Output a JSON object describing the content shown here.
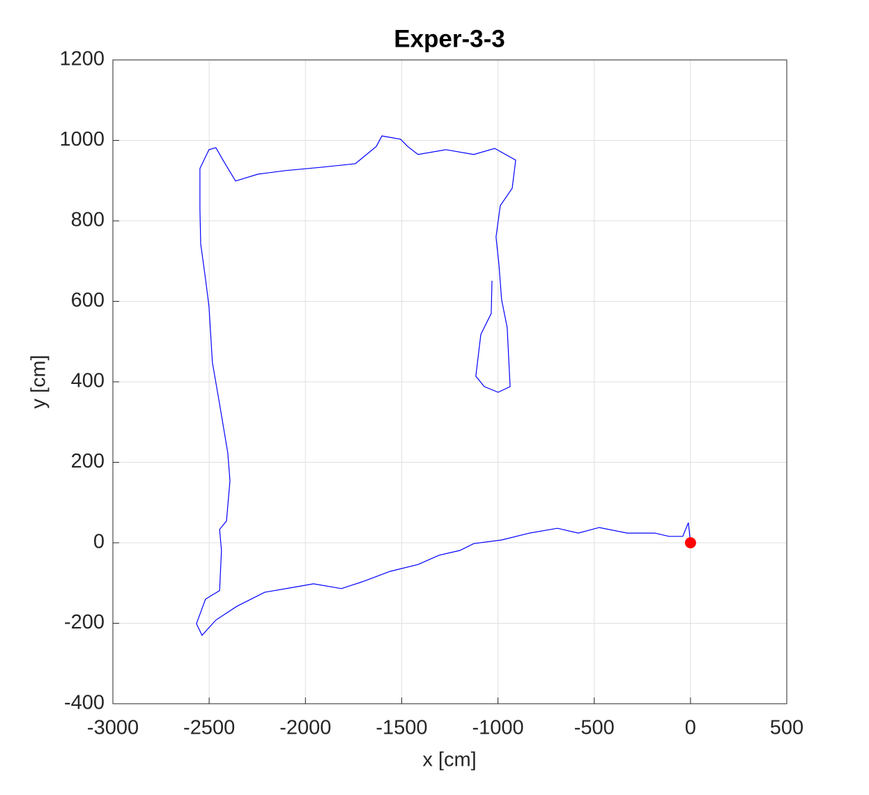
{
  "chart_data": {
    "type": "line",
    "title": "Exper-3-3",
    "x_label": "x [cm]",
    "y_label": "y [cm]",
    "x": [
      0,
      -11,
      -40,
      -112,
      -185,
      -329,
      -474,
      -583,
      -691,
      -836,
      -981,
      -1126,
      -1198,
      -1306,
      -1415,
      -1560,
      -1705,
      -1813,
      -1958,
      -2066,
      -2211,
      -2356,
      -2465,
      -2537,
      -2566,
      -2519,
      -2446,
      -2436,
      -2446,
      -2410,
      -2392,
      -2403,
      -2446,
      -2483,
      -2501,
      -2519,
      -2544,
      -2548,
      -2548,
      -2501,
      -2465,
      -2428,
      -2363,
      -2247,
      -2103,
      -1922,
      -1741,
      -1632,
      -1603,
      -1506,
      -1469,
      -1415,
      -1270,
      -1126,
      -1017,
      -908,
      -926,
      -988,
      -1010,
      -995,
      -981,
      -952,
      -937,
      -999,
      -1071,
      -1115,
      -1089,
      -1035,
      -1031
    ],
    "values": [
      0,
      50,
      16,
      16,
      24,
      24,
      38,
      24,
      36,
      24,
      7,
      -2,
      -19,
      -31,
      -54,
      -71,
      -97,
      -114,
      -102,
      -111,
      -123,
      -158,
      -192,
      -230,
      -201,
      -140,
      -119,
      -19,
      33,
      54,
      154,
      223,
      345,
      448,
      587,
      656,
      743,
      829,
      930,
      977,
      982,
      951,
      899,
      916,
      925,
      933,
      942,
      985,
      1011,
      1003,
      985,
      965,
      977,
      965,
      980,
      951,
      881,
      838,
      760,
      691,
      604,
      535,
      388,
      374,
      388,
      414,
      518,
      570,
      651
    ],
    "color": "#0000ff",
    "marker": {
      "x": 0,
      "y": 0,
      "color": "#ff0000"
    },
    "xlim": [
      -3000,
      500
    ],
    "xticks": [
      -3000,
      -2500,
      -2000,
      -1500,
      -1000,
      -500,
      0,
      500
    ],
    "ylim": [
      -400,
      1200
    ],
    "yticks": [
      -400,
      -200,
      0,
      200,
      400,
      600,
      800,
      1000,
      1200
    ],
    "grid": true
  }
}
